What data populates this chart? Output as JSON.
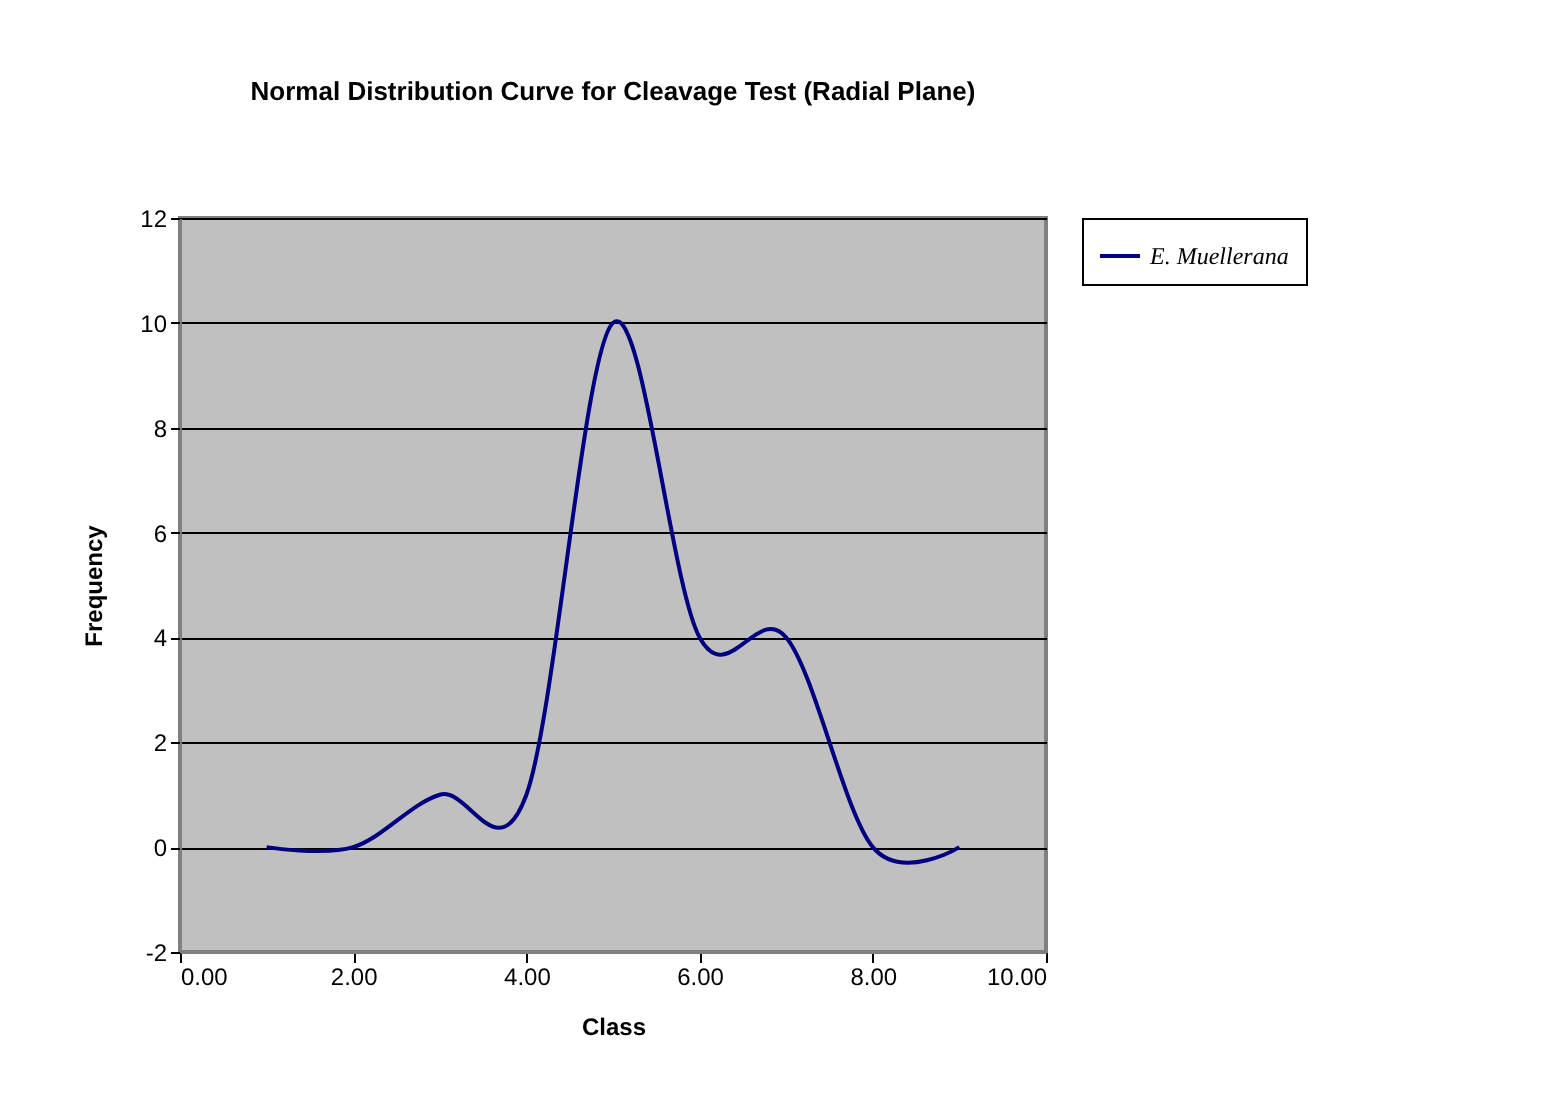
{
  "chart_data": {
    "type": "line",
    "title": "Normal Distribution Curve for Cleavage Test (Radial Plane)",
    "xlabel": "Class",
    "ylabel": "Frequency",
    "x": [
      1,
      2,
      3,
      4,
      5,
      6,
      7,
      8,
      9
    ],
    "series": [
      {
        "name": "E. Muellerana",
        "color": "#000080",
        "values": [
          0,
          0,
          1,
          1,
          10,
          4,
          4,
          0,
          0
        ]
      }
    ],
    "xlim": [
      0,
      10
    ],
    "xticks": [
      {
        "value": 0,
        "label": "0.00"
      },
      {
        "value": 2,
        "label": "2.00"
      },
      {
        "value": 4,
        "label": "4.00"
      },
      {
        "value": 6,
        "label": "6.00"
      },
      {
        "value": 8,
        "label": "8.00"
      },
      {
        "value": 10,
        "label": "10.00"
      }
    ],
    "ylim": [
      -2,
      12
    ],
    "yticks": [
      -2,
      0,
      2,
      4,
      6,
      8,
      10,
      12
    ],
    "grid": "y",
    "legend": "right",
    "marker": "none",
    "line_style": "solid"
  }
}
